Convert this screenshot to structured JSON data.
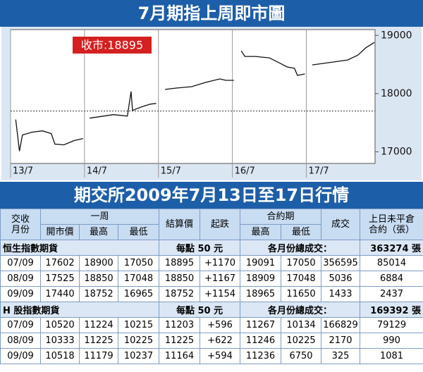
{
  "chart_data": {
    "type": "line",
    "title": "7月期指上周即市圖",
    "annotation": "收市:18895",
    "color": "#111111",
    "x": [
      0.07,
      0.12,
      0.16,
      0.29,
      0.43,
      0.55,
      0.6,
      0.72,
      0.86,
      0.98,
      null,
      1.07,
      1.2,
      1.39,
      1.58,
      1.63,
      1.65,
      1.77,
      1.89,
      1.97,
      null,
      2.09,
      2.25,
      2.45,
      2.64,
      2.83,
      2.91,
      3.02,
      null,
      3.12,
      3.17,
      3.31,
      3.5,
      3.65,
      3.74,
      3.84,
      3.88,
      3.98,
      null,
      4.08,
      4.22,
      4.36,
      4.56,
      4.7,
      4.8,
      4.89,
      4.92
    ],
    "values": [
      17554,
      17012,
      17289,
      17337,
      17361,
      17313,
      17133,
      17120,
      17193,
      17229,
      null,
      17578,
      17602,
      17639,
      17614,
      18036,
      17711,
      17771,
      17819,
      17831,
      null,
      18072,
      18096,
      18120,
      18193,
      18253,
      18229,
      18229,
      null,
      18735,
      18639,
      18639,
      18614,
      18518,
      18458,
      18434,
      18313,
      18337,
      null,
      18494,
      18518,
      18542,
      18578,
      18663,
      18783,
      18855,
      18880
    ],
    "reference_line": 17700,
    "xlim": [
      0,
      4.93
    ],
    "xticks": [
      {
        "value": 0,
        "label": "13/7"
      },
      {
        "value": 1,
        "label": "14/7"
      },
      {
        "value": 2,
        "label": "15/7"
      },
      {
        "value": 3,
        "label": "16/7"
      },
      {
        "value": 4,
        "label": "17/7"
      }
    ],
    "ylim": [
      16800,
      19100
    ],
    "yticks": [
      17000,
      18000,
      19000
    ],
    "grid": true
  },
  "table": {
    "title": "期交所2009年7月13日至17日行情",
    "header_row1": [
      "交收\n月份",
      "一周",
      "結算價",
      "起跌",
      "合約期",
      "成交",
      "上日未平倉\n合約（張）"
    ],
    "header_row2": [
      "開市價",
      "最高",
      "最低",
      "最高",
      "最低"
    ],
    "sections": [
      {
        "name": "恒生指數期貨",
        "unit": "每點 50 元",
        "total_label": "各月份總成交：",
        "total": "363274 張",
        "rows": [
          [
            "07/09",
            "17602",
            "18900",
            "17050",
            "18895",
            "+1170",
            "19091",
            "17050",
            "356595",
            "85014"
          ],
          [
            "08/09",
            "17525",
            "18850",
            "17048",
            "18850",
            "+1167",
            "18909",
            "17048",
            "5036",
            "6884"
          ],
          [
            "09/09",
            "17440",
            "18752",
            "16965",
            "18752",
            "+1154",
            "18965",
            "11650",
            "1433",
            "2437"
          ]
        ]
      },
      {
        "name": "H 股指數期貨",
        "unit": "每點 50 元",
        "total_label": "各月份總成交：",
        "total": "169392 張",
        "rows": [
          [
            "07/09",
            "10520",
            "11224",
            "10215",
            "11203",
            "+596",
            "11267",
            "10134",
            "166829",
            "79129"
          ],
          [
            "08/09",
            "10333",
            "11225",
            "10225",
            "11225",
            "+622",
            "11246",
            "10225",
            "2170",
            "990"
          ],
          [
            "09/09",
            "10518",
            "11179",
            "10237",
            "11164",
            "+594",
            "11236",
            "6750",
            "325",
            "1081"
          ]
        ]
      }
    ]
  }
}
